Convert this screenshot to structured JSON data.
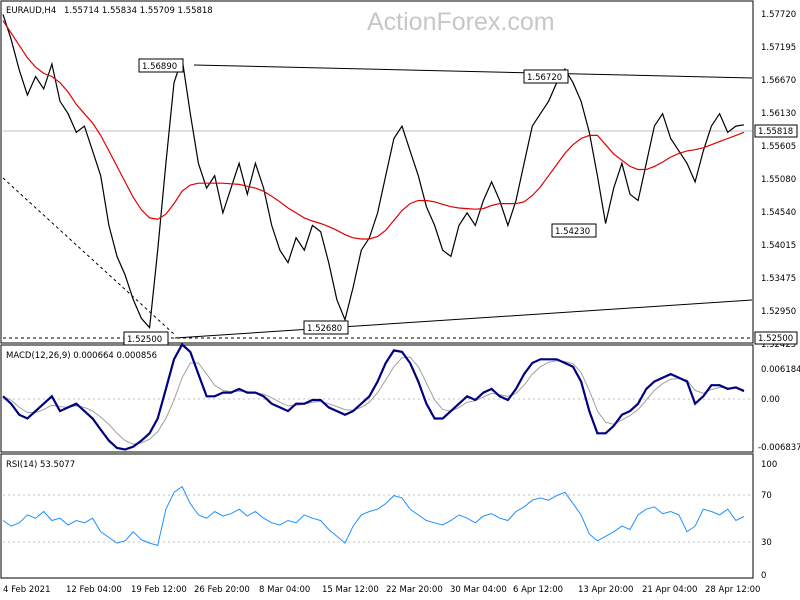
{
  "header": {
    "symbol_timeframe": "EURAUD,H4",
    "ohlc": "1.55714 1.55834 1.55709 1.55818",
    "watermark": "ActionForex.com"
  },
  "colors": {
    "background": "#ffffff",
    "price": "#000000",
    "moving_average": "#e00000",
    "macd_line": "#000080",
    "macd_signal": "#a0a0a0",
    "rsi": "#1e90ff",
    "grid": "#c0c0c0"
  },
  "chart_data": [
    {
      "type": "line",
      "panel": "price",
      "title": "EURAUD,H4  1.55714 1.55834 1.55709 1.55818",
      "y_ticks": [
        "1.57720",
        "1.57195",
        "1.56670",
        "1.56130",
        "1.55605",
        "1.55080",
        "1.54540",
        "1.54015",
        "1.53475",
        "1.52950",
        "1.52425"
      ],
      "ylim": [
        1.5232,
        1.578
      ],
      "current_price_label": "1.55818",
      "current_price": 1.55818,
      "support_label": "1.52500",
      "x_labels": [
        "4 Feb 2021",
        "12 Feb 04:00",
        "19 Feb 12:00",
        "26 Feb 20:00",
        "8 Mar 04:00",
        "15 Mar 12:00",
        "22 Mar 20:00",
        "30 Mar 04:00",
        "6 Apr 12:00",
        "13 Apr 20:00",
        "21 Apr 04:00",
        "28 Apr 12:00"
      ],
      "annotations": [
        {
          "label": "1.56890",
          "value": 1.5689
        },
        {
          "label": "1.56720",
          "value": 1.5672
        },
        {
          "label": "1.54230",
          "value": 1.5423
        },
        {
          "label": "1.52680",
          "value": 1.5268
        },
        {
          "label": "1.52500",
          "value": 1.525
        }
      ],
      "series": [
        {
          "values": [
            1.576,
            1.572,
            1.567,
            1.563,
            1.566,
            1.564,
            1.568,
            1.562,
            1.56,
            1.557,
            1.558,
            1.554,
            1.55,
            1.542,
            1.537,
            1.534,
            1.53,
            1.527,
            1.5255,
            1.538,
            1.552,
            1.565,
            1.5689,
            1.56,
            1.552,
            1.548,
            1.55,
            1.544,
            1.548,
            1.552,
            1.547,
            1.552,
            1.548,
            1.542,
            1.538,
            1.536,
            1.54,
            1.538,
            1.542,
            1.541,
            1.536,
            1.53,
            1.5268,
            1.532,
            1.538,
            1.54,
            1.544,
            1.55,
            1.556,
            1.558,
            1.554,
            1.55,
            1.545,
            1.542,
            1.538,
            1.537,
            1.542,
            1.544,
            1.542,
            1.546,
            1.549,
            1.546,
            1.542,
            1.546,
            1.552,
            1.558,
            1.56,
            1.562,
            1.565,
            1.5672,
            1.565,
            1.562,
            1.557,
            1.55,
            1.5423,
            1.548,
            1.552,
            1.547,
            1.546,
            1.552,
            1.558,
            1.56,
            1.556,
            1.554,
            1.552,
            1.549,
            1.554,
            1.558,
            1.56,
            1.557,
            1.558,
            1.5582
          ]
        },
        {
          "name": "moving average",
          "values": [
            1.575,
            1.573,
            1.571,
            1.569,
            1.5675,
            1.5665,
            1.566,
            1.565,
            1.5635,
            1.5615,
            1.56,
            1.5585,
            1.5565,
            1.554,
            1.5515,
            1.549,
            1.5465,
            1.5445,
            1.5432,
            1.543,
            1.5438,
            1.5455,
            1.5475,
            1.5485,
            1.5488,
            1.5488,
            1.5488,
            1.5488,
            1.5487,
            1.5486,
            1.5483,
            1.548,
            1.5475,
            1.5467,
            1.5458,
            1.5448,
            1.544,
            1.5432,
            1.5427,
            1.5423,
            1.5418,
            1.5412,
            1.5405,
            1.54,
            1.5398,
            1.5398,
            1.5402,
            1.5412,
            1.5428,
            1.5444,
            1.5455,
            1.546,
            1.546,
            1.5458,
            1.5454,
            1.545,
            1.5448,
            1.5447,
            1.5446,
            1.5447,
            1.5452,
            1.5455,
            1.5455,
            1.5455,
            1.5458,
            1.5468,
            1.5482,
            1.55,
            1.5518,
            1.5536,
            1.555,
            1.556,
            1.5565,
            1.5565,
            1.555,
            1.5535,
            1.5525,
            1.5515,
            1.551,
            1.551,
            1.5515,
            1.5522,
            1.553,
            1.5536,
            1.554,
            1.5542,
            1.5545,
            1.555,
            1.5555,
            1.556,
            1.5565,
            1.557
          ]
        }
      ]
    },
    {
      "type": "line",
      "panel": "macd",
      "label": "MACD(12,26,9) 0.000664 0.000856",
      "y_ticks": [
        "0.006184",
        "0.00",
        "-0.006837"
      ],
      "ylim": [
        -0.0074,
        0.0068
      ],
      "series": [
        {
          "values": [
            0.0,
            -0.001,
            -0.0025,
            -0.003,
            -0.002,
            -0.001,
            0.0,
            -0.002,
            -0.0015,
            -0.001,
            -0.002,
            -0.003,
            -0.0045,
            -0.006,
            -0.007,
            -0.0072,
            -0.0068,
            -0.006,
            -0.005,
            -0.003,
            0.001,
            0.005,
            0.007,
            0.006,
            0.003,
            0.0,
            0.0,
            0.0005,
            0.0005,
            0.001,
            0.0005,
            0.0005,
            0.0,
            -0.001,
            -0.0015,
            -0.002,
            -0.001,
            -0.001,
            -0.0005,
            -0.0005,
            -0.0015,
            -0.002,
            -0.0025,
            -0.002,
            -0.001,
            0.0,
            0.002,
            0.0045,
            0.0062,
            0.006,
            0.0045,
            0.002,
            -0.001,
            -0.003,
            -0.003,
            -0.002,
            -0.001,
            0.0,
            -0.0005,
            0.0005,
            0.001,
            0.0,
            -0.0005,
            0.001,
            0.003,
            0.0045,
            0.005,
            0.005,
            0.005,
            0.0045,
            0.004,
            0.002,
            -0.002,
            -0.005,
            -0.005,
            -0.004,
            -0.0025,
            -0.002,
            -0.001,
            0.001,
            0.002,
            0.0025,
            0.003,
            0.0025,
            0.002,
            -0.001,
            0.0,
            0.0015,
            0.0015,
            0.001,
            0.0012,
            0.0007
          ]
        },
        {
          "values": [
            0.0,
            -0.0005,
            -0.0015,
            -0.0022,
            -0.0022,
            -0.0018,
            -0.0012,
            -0.0014,
            -0.0015,
            -0.0013,
            -0.0015,
            -0.002,
            -0.0028,
            -0.0038,
            -0.005,
            -0.006,
            -0.0065,
            -0.0063,
            -0.0058,
            -0.0048,
            -0.003,
            -0.0005,
            0.0025,
            0.0045,
            0.0045,
            0.003,
            0.0015,
            0.0008,
            0.0006,
            0.0007,
            0.0006,
            0.0005,
            0.0003,
            -0.0002,
            -0.0008,
            -0.0013,
            -0.0012,
            -0.0011,
            -0.0008,
            -0.0007,
            -0.001,
            -0.0014,
            -0.0018,
            -0.0019,
            -0.0015,
            -0.0008,
            0.0005,
            0.0022,
            0.004,
            0.0052,
            0.0053,
            0.004,
            0.0018,
            -0.0005,
            -0.0018,
            -0.002,
            -0.0015,
            -0.0008,
            -0.0006,
            -0.0001,
            0.0004,
            0.0002,
            0.0,
            0.0004,
            0.0015,
            0.003,
            0.004,
            0.0046,
            0.0048,
            0.0047,
            0.0044,
            0.0032,
            0.0008,
            -0.002,
            -0.0035,
            -0.0038,
            -0.0032,
            -0.0026,
            -0.0018,
            -0.0005,
            0.0008,
            0.0017,
            0.0023,
            0.0024,
            0.0022,
            0.0008,
            0.0004,
            0.0009,
            0.0012,
            0.0011,
            0.0011,
            0.0009
          ]
        }
      ]
    },
    {
      "type": "line",
      "panel": "rsi",
      "label": "RSI(14) 53.5077",
      "y_ticks": [
        "100",
        "70",
        "30",
        "0"
      ],
      "ylim": [
        0,
        100
      ],
      "series": [
        {
          "values": [
            50,
            45,
            48,
            55,
            52,
            58,
            50,
            52,
            46,
            50,
            48,
            52,
            40,
            35,
            30,
            32,
            40,
            33,
            30,
            28,
            60,
            75,
            80,
            65,
            55,
            52,
            58,
            54,
            56,
            60,
            54,
            58,
            52,
            48,
            46,
            50,
            48,
            55,
            52,
            50,
            42,
            36,
            30,
            45,
            55,
            58,
            60,
            65,
            72,
            70,
            60,
            55,
            50,
            48,
            46,
            50,
            55,
            52,
            48,
            54,
            56,
            52,
            50,
            58,
            62,
            68,
            70,
            68,
            72,
            75,
            65,
            55,
            38,
            32,
            36,
            40,
            45,
            42,
            55,
            60,
            62,
            56,
            58,
            55,
            40,
            45,
            60,
            58,
            55,
            60,
            50,
            53.5
          ]
        }
      ]
    }
  ]
}
